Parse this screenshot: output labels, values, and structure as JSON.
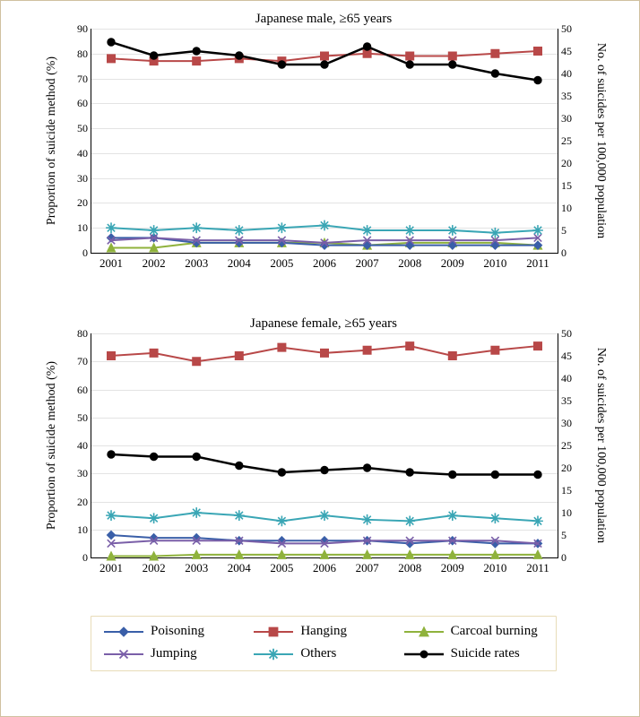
{
  "years": [
    2001,
    2002,
    2003,
    2004,
    2005,
    2006,
    2007,
    2008,
    2009,
    2010,
    2011
  ],
  "series_meta": {
    "poisoning": {
      "label": "Poisoning",
      "color": "#3a5fa8",
      "marker": "diamond",
      "width": 2
    },
    "hanging": {
      "label": "Hanging",
      "color": "#b84848",
      "marker": "square",
      "width": 2
    },
    "charcoal": {
      "label": "Carcoal burning",
      "color": "#8fb23c",
      "marker": "triangle",
      "width": 2
    },
    "jumping": {
      "label": "Jumping",
      "color": "#7a5fa8",
      "marker": "x",
      "width": 2
    },
    "others": {
      "label": "Others",
      "color": "#3aa6b5",
      "marker": "star",
      "width": 2
    },
    "suicide_rates": {
      "label": "Suicide rates",
      "color": "#000000",
      "marker": "circle",
      "width": 2.5
    }
  },
  "legend_order": [
    "poisoning",
    "hanging",
    "charcoal",
    "jumping",
    "others",
    "suicide_rates"
  ],
  "axis_titles": {
    "left": "Proportion of suicide method (%)",
    "right": "No. of suicides per 100,000 population"
  },
  "charts": [
    {
      "title": "Japanese male, ≥65 years",
      "left_axis": {
        "min": 0,
        "max": 90,
        "step": 10
      },
      "right_axis": {
        "min": 0,
        "max": 50,
        "step": 5
      },
      "left_series": {
        "poisoning": [
          6,
          6,
          4,
          4,
          4,
          3,
          3,
          3,
          3,
          3,
          3
        ],
        "hanging": [
          78,
          77,
          77,
          78,
          77,
          79,
          80,
          79,
          79,
          80,
          81
        ],
        "charcoal": [
          2,
          2,
          4,
          4,
          4,
          4,
          3,
          4,
          4,
          4,
          3
        ],
        "jumping": [
          5,
          6,
          5,
          5,
          5,
          4,
          5,
          5,
          5,
          5,
          6
        ],
        "others": [
          10,
          9,
          10,
          9,
          10,
          11,
          9,
          9,
          9,
          8,
          9
        ]
      },
      "right_series": {
        "suicide_rates": [
          47,
          44,
          45,
          44,
          42,
          42,
          46,
          42,
          42,
          40,
          38.5
        ]
      }
    },
    {
      "title": "Japanese female, ≥65 years",
      "left_axis": {
        "min": 0,
        "max": 80,
        "step": 10
      },
      "right_axis": {
        "min": 0,
        "max": 50,
        "step": 5
      },
      "left_series": {
        "poisoning": [
          8,
          7,
          7,
          6,
          6,
          6,
          6,
          5,
          6,
          5,
          5
        ],
        "hanging": [
          72,
          73,
          70,
          72,
          75,
          73,
          74,
          75.5,
          72,
          74,
          75.5
        ],
        "charcoal": [
          0.5,
          0.5,
          1,
          1,
          1,
          1,
          1,
          1,
          1,
          1,
          1
        ],
        "jumping": [
          5,
          6,
          6,
          6,
          5,
          5,
          6,
          6,
          6,
          6,
          5
        ],
        "others": [
          15,
          14,
          16,
          15,
          13,
          15,
          13.5,
          13,
          15,
          14,
          13
        ]
      },
      "right_series": {
        "suicide_rates": [
          23,
          22.5,
          22.5,
          20.5,
          19,
          19.5,
          20,
          19,
          18.5,
          18.5,
          18.5
        ]
      }
    }
  ]
}
